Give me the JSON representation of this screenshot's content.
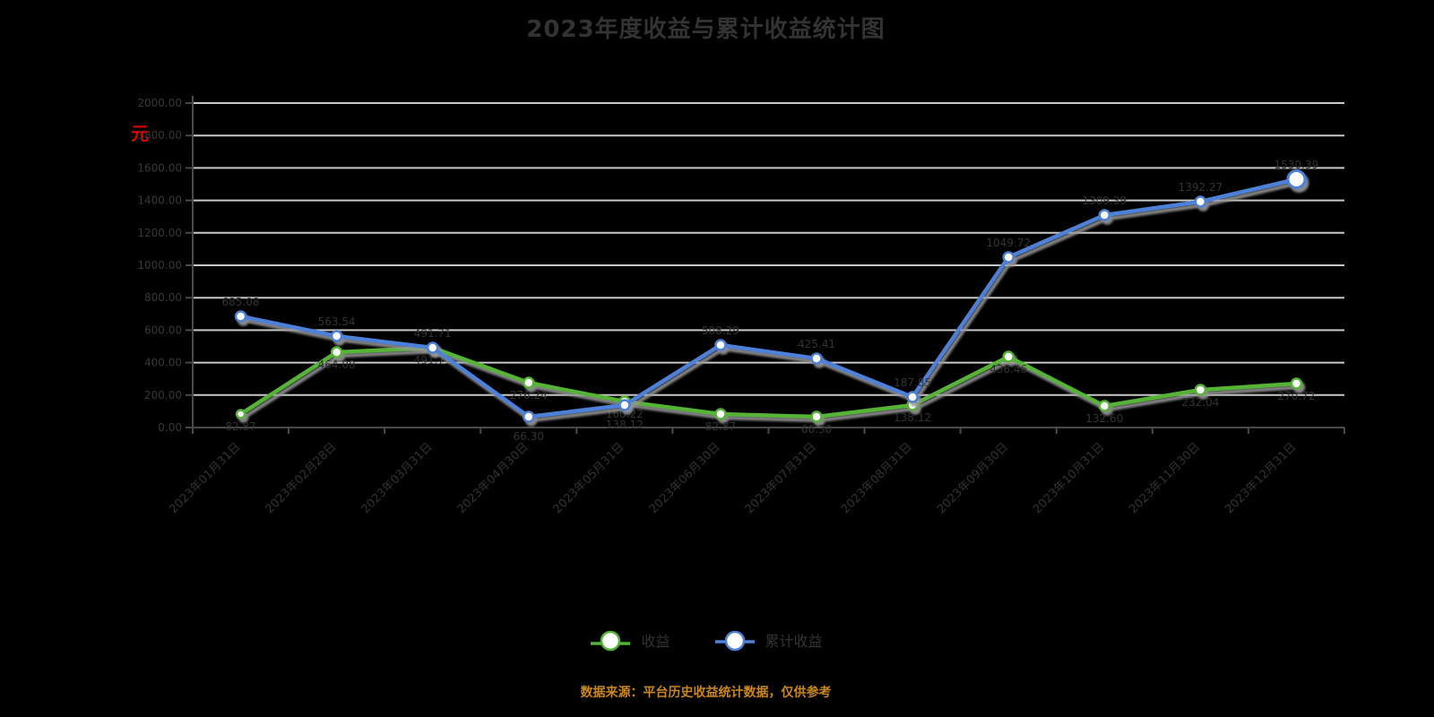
{
  "title": "2023年度收益与累计收益统计图",
  "y_axis_unit": "元",
  "footer_note": "数据来源：平台历史收益统计数据，仅供参考",
  "colors": {
    "title_text": "#333333",
    "axis_unit_red": "#e00000",
    "grid_line": "#c8c8c8",
    "axis_line": "#4a4a4a",
    "tick_text": "#383838",
    "label_text": "#333333",
    "footer_orange": "#c8871d",
    "series_green": "#54b335",
    "series_blue": "#4d80d8",
    "marker_fill": "#ffffff"
  },
  "chart_data": {
    "type": "line",
    "title": "2023年度收益与累计收益统计图",
    "ylabel": "元",
    "xlabel": "",
    "ylim": [
      0,
      2000
    ],
    "y_tick_step": 200,
    "grid": true,
    "legend_position": "bottom",
    "y_ticks": [
      "0.00",
      "200.00",
      "400.00",
      "600.00",
      "800.00",
      "1000.00",
      "1200.00",
      "1400.00",
      "1600.00",
      "1800.00",
      "2000.00"
    ],
    "categories": [
      "2023年01月31日",
      "2023年02月28日",
      "2023年03月31日",
      "2023年04月30日",
      "2023年05月31日",
      "2023年06月30日",
      "2023年07月31日",
      "2023年08月31日",
      "2023年09月30日",
      "2023年10月31日",
      "2023年11月30日",
      "2023年12月31日"
    ],
    "series": [
      {
        "name": "收益",
        "color": "#54b335",
        "values": [
          82.87,
          464.08,
          491.71,
          276.24,
          160.22,
          82.87,
          66.3,
          138.12,
          436.46,
          132.6,
          232.04,
          270.72
        ],
        "labels": [
          "82.87",
          "464.08",
          "491.71",
          "276.24",
          "160.22",
          "82.87",
          "66.30",
          "138.12",
          "436.46",
          "132.60",
          "232.04",
          "270.72"
        ]
      },
      {
        "name": "累计收益",
        "color": "#4d80d8",
        "values": [
          685.08,
          563.54,
          491.71,
          66.3,
          138.12,
          508.29,
          425.41,
          187.85,
          1049.72,
          1309.39,
          1392.27,
          1530.39
        ],
        "labels": [
          "685.08",
          "563.54",
          "491.71",
          "66.30",
          "138.12",
          "508.29",
          "425.41",
          "187.85",
          "1049.72",
          "1309.39",
          "1392.27",
          "1530.39"
        ]
      }
    ]
  }
}
